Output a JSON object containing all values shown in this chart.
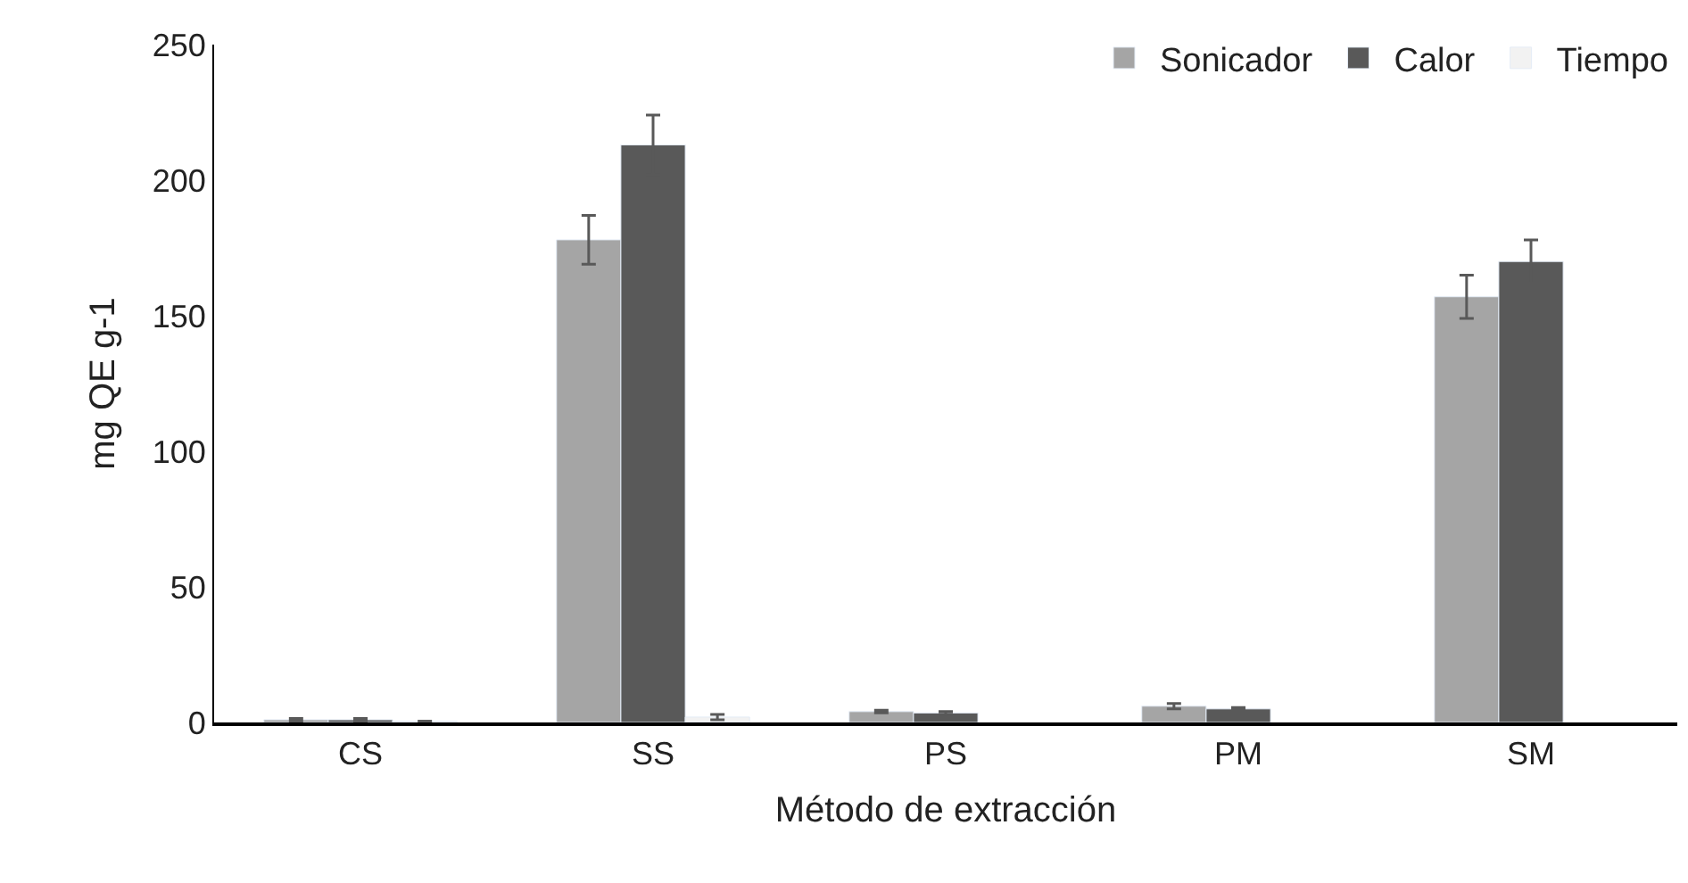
{
  "chart_data": {
    "type": "bar",
    "xlabel": "Método de extracción",
    "ylabel": "mg QE g-1",
    "categories": [
      "CS",
      "SS",
      "PS",
      "PM",
      "SM"
    ],
    "series": [
      {
        "name": "Sonicador",
        "color": "#a5a5a5",
        "values": [
          1,
          178,
          4,
          6,
          157
        ],
        "errors": [
          0.5,
          9,
          0.5,
          1,
          8
        ]
      },
      {
        "name": "Calor",
        "color": "#595959",
        "values": [
          1,
          213,
          3.5,
          5,
          170
        ],
        "errors": [
          0.5,
          11,
          0.5,
          0.5,
          8
        ]
      },
      {
        "name": "Tiempo",
        "color": "#f2f2f2",
        "values": [
          0.5,
          2,
          null,
          null,
          null
        ],
        "errors": [
          null,
          1,
          null,
          null,
          null
        ]
      }
    ],
    "ylim": [
      0,
      250
    ],
    "yticks": [
      0,
      50,
      100,
      150,
      200,
      250
    ],
    "legend": "top right"
  }
}
